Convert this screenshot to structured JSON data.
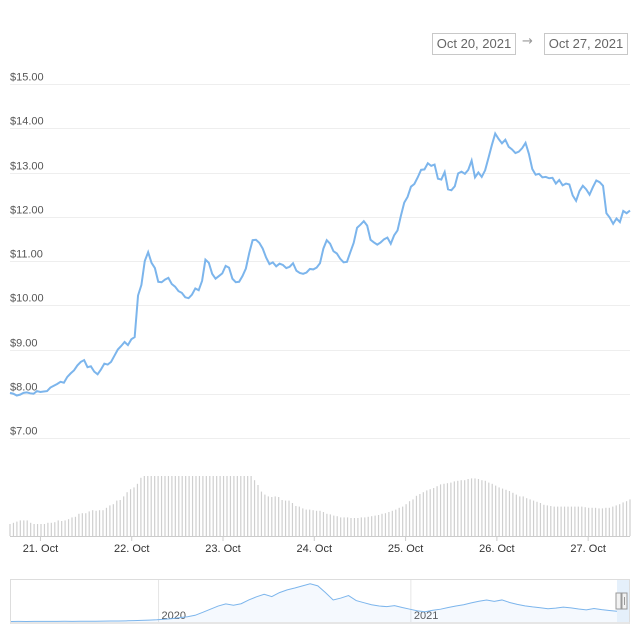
{
  "range_selector": {
    "from": "Oct 20, 2021",
    "arrow": "→",
    "to": "Oct 27, 2021"
  },
  "colors": {
    "line": "#7cb5ec",
    "volume": "#cfcfcf",
    "grid": "#eeeeee"
  },
  "chart_data": {
    "type": "line",
    "title": "",
    "xlabel": "",
    "ylabel": "",
    "ylim": [
      7,
      15
    ],
    "yticks": [
      7,
      8,
      9,
      10,
      11,
      12,
      13,
      14,
      15
    ],
    "ytick_labels": [
      "$7.00",
      "$8.00",
      "$9.00",
      "$10.00",
      "$11.00",
      "$12.00",
      "$13.00",
      "$14.00",
      "$15.00"
    ],
    "xticks": [
      "2021-10-21",
      "2021-10-22",
      "2021-10-23",
      "2021-10-24",
      "2021-10-25",
      "2021-10-26",
      "2021-10-27"
    ],
    "xtick_labels": [
      "21. Oct",
      "22. Oct",
      "23. Oct",
      "24. Oct",
      "25. Oct",
      "26. Oct",
      "27. Oct"
    ],
    "x_start": "2021-10-20T16:00",
    "x_end": "2021-10-27T11:00",
    "grid": true,
    "series": [
      {
        "values": [
          8.02,
          8.0,
          7.96,
          7.98,
          8.02,
          8.03,
          8.01,
          8.0,
          8.06,
          8.04,
          8.05,
          8.06,
          8.14,
          8.18,
          8.22,
          8.27,
          8.25,
          8.38,
          8.46,
          8.53,
          8.64,
          8.72,
          8.76,
          8.6,
          8.62,
          8.5,
          8.44,
          8.55,
          8.68,
          8.66,
          8.72,
          8.86,
          9.0,
          9.08,
          9.17,
          9.1,
          9.23,
          9.28,
          10.22,
          10.46,
          11.0,
          11.2,
          10.96,
          10.84,
          10.53,
          10.52,
          10.58,
          10.62,
          10.48,
          10.42,
          10.32,
          10.28,
          10.18,
          10.16,
          10.24,
          10.38,
          10.34,
          10.55,
          11.03,
          10.96,
          10.71,
          10.6,
          10.66,
          10.72,
          10.89,
          10.85,
          10.6,
          10.52,
          10.53,
          10.66,
          10.83,
          11.18,
          11.47,
          11.48,
          11.41,
          11.28,
          11.08,
          10.93,
          10.97,
          10.88,
          10.94,
          10.91,
          10.84,
          10.87,
          10.95,
          10.78,
          10.73,
          10.71,
          10.74,
          10.82,
          10.81,
          10.85,
          10.95,
          11.28,
          11.47,
          11.39,
          11.22,
          11.17,
          11.05,
          10.97,
          10.98,
          11.2,
          11.41,
          11.75,
          11.82,
          11.9,
          11.8,
          11.48,
          11.42,
          11.37,
          11.42,
          11.49,
          11.53,
          11.39,
          11.58,
          11.69,
          12.02,
          12.32,
          12.45,
          12.68,
          12.74,
          12.89,
          13.06,
          13.07,
          13.21,
          13.15,
          13.18,
          12.86,
          12.84,
          13.01,
          12.62,
          12.6,
          12.69,
          12.98,
          13.02,
          12.97,
          13.06,
          13.27,
          12.89,
          13.0,
          12.9,
          13.05,
          13.33,
          13.62,
          13.88,
          13.76,
          13.66,
          13.74,
          13.58,
          13.52,
          13.44,
          13.47,
          13.55,
          13.67,
          13.42,
          13.08,
          12.95,
          12.97,
          12.89,
          12.9,
          12.87,
          12.88,
          12.75,
          12.83,
          12.71,
          12.75,
          12.73,
          12.48,
          12.36,
          12.58,
          12.7,
          12.62,
          12.5,
          12.67,
          12.82,
          12.78,
          12.7,
          12.08,
          11.98,
          11.84,
          11.96,
          11.88,
          12.13,
          12.08,
          12.14
        ]
      }
    ],
    "volume": {
      "ylim": [
        0,
        1
      ],
      "values": [
        0.2,
        0.22,
        0.24,
        0.26,
        0.26,
        0.26,
        0.22,
        0.2,
        0.2,
        0.2,
        0.2,
        0.22,
        0.22,
        0.23,
        0.26,
        0.25,
        0.26,
        0.28,
        0.31,
        0.32,
        0.37,
        0.38,
        0.38,
        0.41,
        0.43,
        0.42,
        0.43,
        0.43,
        0.47,
        0.51,
        0.53,
        0.59,
        0.6,
        0.66,
        0.73,
        0.78,
        0.81,
        0.87,
        0.97,
        1.0,
        1.0,
        1.0,
        1.0,
        1.0,
        1.0,
        1.0,
        1.0,
        1.0,
        1.0,
        1.0,
        1.0,
        1.0,
        1.0,
        1.0,
        1.0,
        1.0,
        1.0,
        1.0,
        1.0,
        1.0,
        1.0,
        1.0,
        1.0,
        1.0,
        1.0,
        1.0,
        1.0,
        1.0,
        1.0,
        1.0,
        1.0,
        0.93,
        0.85,
        0.74,
        0.69,
        0.66,
        0.65,
        0.66,
        0.65,
        0.6,
        0.59,
        0.59,
        0.55,
        0.5,
        0.49,
        0.46,
        0.44,
        0.44,
        0.43,
        0.42,
        0.42,
        0.4,
        0.37,
        0.36,
        0.34,
        0.33,
        0.31,
        0.31,
        0.31,
        0.3,
        0.3,
        0.3,
        0.31,
        0.31,
        0.32,
        0.33,
        0.34,
        0.35,
        0.37,
        0.38,
        0.4,
        0.42,
        0.44,
        0.47,
        0.49,
        0.53,
        0.58,
        0.61,
        0.67,
        0.7,
        0.73,
        0.76,
        0.78,
        0.8,
        0.83,
        0.86,
        0.87,
        0.88,
        0.89,
        0.91,
        0.92,
        0.93,
        0.93,
        0.95,
        0.96,
        0.96,
        0.95,
        0.93,
        0.92,
        0.89,
        0.87,
        0.84,
        0.81,
        0.79,
        0.77,
        0.75,
        0.72,
        0.69,
        0.66,
        0.66,
        0.63,
        0.61,
        0.59,
        0.57,
        0.55,
        0.52,
        0.51,
        0.5,
        0.49,
        0.49,
        0.49,
        0.49,
        0.49,
        0.49,
        0.49,
        0.49,
        0.49,
        0.48,
        0.47,
        0.47,
        0.47,
        0.46,
        0.46,
        0.47,
        0.47,
        0.49,
        0.51,
        0.53,
        0.56,
        0.58,
        0.61
      ]
    },
    "navigator": {
      "labels": [
        "2020",
        "2021"
      ],
      "x_start": "2019-06-01",
      "x_end": "2021-10-27",
      "ylim": [
        0,
        20
      ],
      "values": [
        0.25,
        0.27,
        0.26,
        0.3,
        0.28,
        0.3,
        0.29,
        0.33,
        0.31,
        0.35,
        0.36,
        0.38,
        0.4,
        0.45,
        0.5,
        0.56,
        0.65,
        0.77,
        0.9,
        1.05,
        1.3,
        1.6,
        2.1,
        2.5,
        3.2,
        4.6,
        6.1,
        7.6,
        8.6,
        8.0,
        8.7,
        10.5,
        12.0,
        13.2,
        12.1,
        14.0,
        15.3,
        16.2,
        17.2,
        18.2,
        17.2,
        14.0,
        10.5,
        11.4,
        12.6,
        10.2,
        9.2,
        8.2,
        7.6,
        7.3,
        7.8,
        6.9,
        6.1,
        5.3,
        4.9,
        5.6,
        6.1,
        6.9,
        7.6,
        8.2,
        9.1,
        9.9,
        10.5,
        9.8,
        10.5,
        9.3,
        8.4,
        7.7,
        7.2,
        6.8,
        6.3,
        6.6,
        7.1,
        6.7,
        6.2,
        5.8,
        6.4,
        5.9,
        5.5,
        5.1
      ]
    }
  }
}
